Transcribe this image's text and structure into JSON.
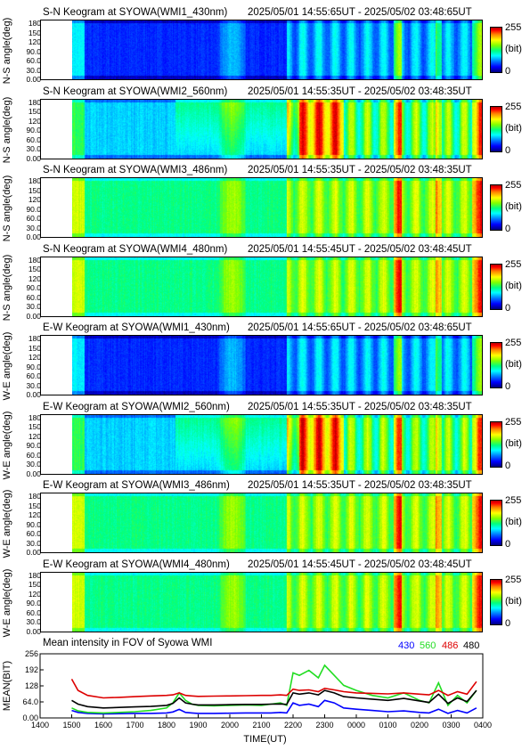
{
  "keograms": [
    {
      "title_left": "S-N Keogram at SYOWA(WMI1_430nm)",
      "title_right": "2025/05/01 14:55:65UT - 2025/05/02 03:48:65UT",
      "ylabel": "N-S angle(deg)",
      "palette": "430"
    },
    {
      "title_left": "S-N Keogram at SYOWA(WMI2_560nm)",
      "title_right": "2025/05/01 14:55:35UT - 2025/05/02 03:48:35UT",
      "ylabel": "N-S angle(deg)",
      "palette": "560"
    },
    {
      "title_left": "S-N Keogram at SYOWA(WMI3_486nm)",
      "title_right": "2025/05/01 14:55:35UT - 2025/05/02 03:48:35UT",
      "ylabel": "N-S angle(deg)",
      "palette": "486"
    },
    {
      "title_left": "S-N Keogram at SYOWA(WMI4_480nm)",
      "title_right": "2025/05/01 14:55:45UT - 2025/05/02 03:48:45UT",
      "ylabel": "N-S angle(deg)",
      "palette": "480"
    },
    {
      "title_left": "E-W Keogram at SYOWA(WMI1_430nm)",
      "title_right": "2025/05/01 14:55:65UT - 2025/05/02 03:48:65UT",
      "ylabel": "W-E angle(deg)",
      "palette": "430"
    },
    {
      "title_left": "E-W Keogram at SYOWA(WMI2_560nm)",
      "title_right": "2025/05/01 14:55:35UT - 2025/05/02 03:48:35UT",
      "ylabel": "W-E angle(deg)",
      "palette": "560"
    },
    {
      "title_left": "E-W Keogram at SYOWA(WMI3_486nm)",
      "title_right": "2025/05/01 14:55:35UT - 2025/05/02 03:48:35UT",
      "ylabel": "W-E angle(deg)",
      "palette": "486"
    },
    {
      "title_left": "E-W Keogram at SYOWA(WMI4_480nm)",
      "title_right": "2025/05/01 14:55:45UT - 2025/05/02 03:48:45UT",
      "ylabel": "W-E angle(deg)",
      "palette": "480"
    }
  ],
  "keogram_yticks": [
    "180",
    "150",
    "120",
    "90.0",
    "60.0",
    "30.0",
    "0.00"
  ],
  "colorbar": {
    "max": "255",
    "unit": "(bit)",
    "min": "0"
  },
  "chart_data": {
    "type": "line",
    "title": "Mean intensity in FOV of Syowa WMI",
    "ylabel": "MEAN(BIT)",
    "xlabel": "TIME(UT)",
    "ylim": [
      0,
      256
    ],
    "yticks": [
      "256",
      "192",
      "128",
      "64.0",
      "0.00"
    ],
    "xticks": [
      "1400",
      "1500",
      "1600",
      "1700",
      "1800",
      "1900",
      "2000",
      "2100",
      "2200",
      "2300",
      "0000",
      "0100",
      "0200",
      "0300",
      "0400"
    ],
    "legend": [
      {
        "label": "430",
        "color": "#0000ff"
      },
      {
        "label": "560",
        "color": "#22dd22"
      },
      {
        "label": "486",
        "color": "#dd0000"
      },
      {
        "label": "480",
        "color": "#000000"
      }
    ],
    "x_hours": [
      15,
      15.2,
      15.5,
      16,
      16.5,
      17,
      17.5,
      18,
      18.2,
      18.4,
      18.6,
      18.8,
      19,
      19.5,
      20,
      20.5,
      21,
      21.3,
      21.6,
      21.8,
      22,
      22.2,
      22.5,
      22.8,
      23,
      23.3,
      23.6,
      24,
      24.5,
      25,
      25.5,
      26,
      26.3,
      26.6,
      26.9,
      27.2,
      27.5,
      27.8
    ],
    "series": [
      {
        "name": "430",
        "color": "#0000ff",
        "values": [
          30,
          22,
          18,
          16,
          17,
          18,
          18,
          20,
          24,
          34,
          22,
          20,
          18,
          18,
          19,
          20,
          20,
          20,
          22,
          20,
          60,
          50,
          55,
          45,
          70,
          60,
          40,
          35,
          30,
          25,
          28,
          22,
          20,
          35,
          18,
          30,
          20,
          40
        ]
      },
      {
        "name": "560",
        "color": "#22dd22",
        "values": [
          40,
          28,
          22,
          20,
          22,
          25,
          30,
          40,
          60,
          100,
          70,
          55,
          50,
          48,
          50,
          52,
          50,
          55,
          60,
          50,
          180,
          170,
          190,
          160,
          210,
          170,
          130,
          110,
          90,
          80,
          100,
          70,
          60,
          140,
          50,
          90,
          60,
          110
        ]
      },
      {
        "name": "486",
        "color": "#dd0000",
        "values": [
          155,
          110,
          90,
          80,
          82,
          85,
          88,
          90,
          92,
          100,
          90,
          88,
          86,
          87,
          88,
          89,
          90,
          90,
          92,
          90,
          115,
          110,
          112,
          105,
          118,
          112,
          105,
          100,
          98,
          96,
          100,
          95,
          92,
          110,
          90,
          105,
          95,
          145
        ]
      },
      {
        "name": "480",
        "color": "#000000",
        "values": [
          70,
          55,
          45,
          40,
          42,
          44,
          46,
          50,
          58,
          80,
          60,
          55,
          52,
          52,
          53,
          54,
          54,
          55,
          56,
          54,
          100,
          95,
          100,
          92,
          110,
          100,
          85,
          80,
          75,
          70,
          78,
          68,
          62,
          95,
          58,
          80,
          65,
          110
        ]
      }
    ]
  }
}
